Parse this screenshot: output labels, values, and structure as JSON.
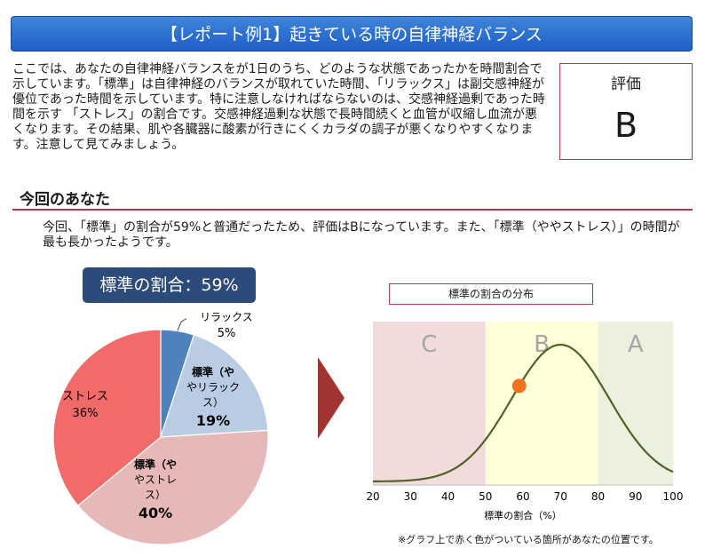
{
  "header": {
    "title": "【レポート例1】起きている時の自律神経バランス"
  },
  "intro": {
    "text": "ここでは、あなたの自律神経バランスをが1日のうち、どのような状態であったかを時間割合で示しています。「標準」は自律神経のバランスが取れていた時間、「リラックス」は副交感神経が優位であった時間を示しています。特に注意しなければならないのは、交感神経過剰であった時間を示す 「ストレス」の割合です。交感神経過剰な状態で長時間続くと血管が収縮し血流が悪くなります。その結果、肌や各臓器に酸素が行きにくくカラダの調子が悪くなりやすくなります。注意して見てみましょう。"
  },
  "grade": {
    "label": "評価",
    "value": "B"
  },
  "section": {
    "title": "今回のあなた"
  },
  "summary": {
    "text": "今回、「標準」の割合が59%と普通だったため、評価はBになっています。また、「標準（ややストレス）」の時間が最も長かったようです。"
  },
  "ratio_badge": {
    "text": "標準の割合：59%"
  },
  "chart_data": [
    {
      "type": "pie",
      "slices": [
        {
          "label": "リラックス",
          "value": 5,
          "value_label": "5%",
          "color": "#4f81bd"
        },
        {
          "label": "標準（ややリラックス）",
          "value": 19,
          "value_label": "19%",
          "color": "#b9cce4"
        },
        {
          "label": "標準（ややストレス）",
          "value": 40,
          "value_label": "40%",
          "color": "#e6b9b8"
        },
        {
          "label": "ストレス",
          "value": 36,
          "value_label": "36%",
          "color": "#f26b6b"
        }
      ]
    },
    {
      "type": "line",
      "title": "標準の割合の分布",
      "xlabel": "標準の割合（%）",
      "xlim": [
        20,
        100
      ],
      "x_ticks": [
        20,
        30,
        40,
        50,
        60,
        70,
        80,
        90,
        100
      ],
      "zones": [
        {
          "label": "C",
          "from": 20,
          "to": 50,
          "color": "#f2dcdb"
        },
        {
          "label": "B",
          "from": 50,
          "to": 80,
          "color": "#ffffd9"
        },
        {
          "label": "A",
          "from": 80,
          "to": 100,
          "color": "#ebf1de"
        }
      ],
      "line_color": "#4f6228",
      "marker": {
        "x": 59,
        "color": "#f07320"
      }
    }
  ],
  "footnote": "※グラフ上で赤く色がついている箇所があなたの位置です。"
}
